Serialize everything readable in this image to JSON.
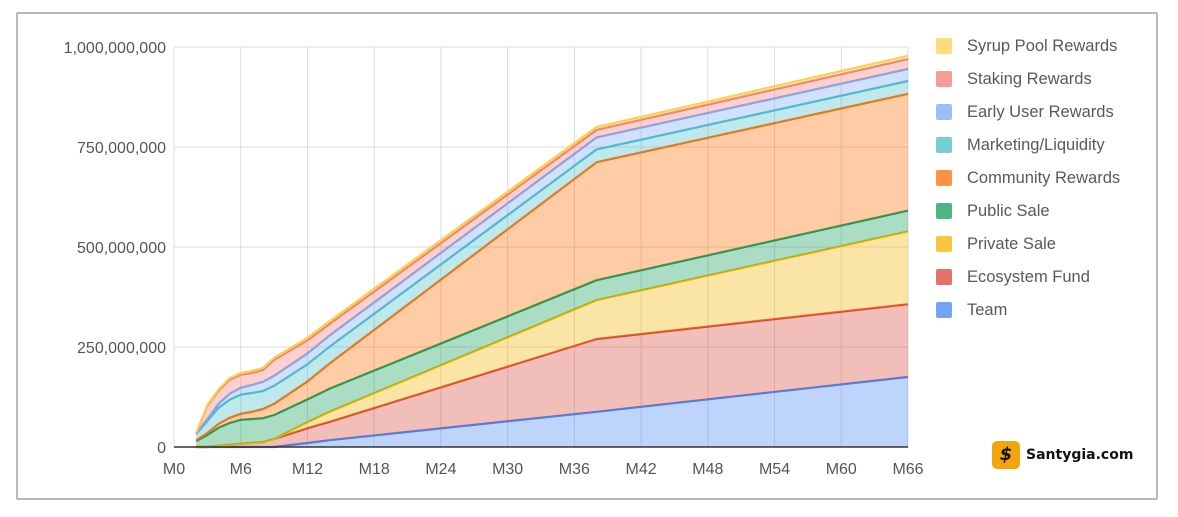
{
  "chart_data": {
    "type": "area",
    "stacked": true,
    "title": "",
    "xlabel": "",
    "ylabel": "",
    "x_ticks": [
      "M0",
      "M6",
      "M12",
      "M18",
      "M24",
      "M30",
      "M36",
      "M42",
      "M48",
      "M54",
      "M60",
      "M66"
    ],
    "y_ticks": [
      "0",
      "250,000,000",
      "500,000,000",
      "750,000,000",
      "1,000,000,000"
    ],
    "xlim": [
      0,
      66
    ],
    "ylim": [
      0,
      1000000000
    ],
    "grid": true,
    "legend_position": "right",
    "x": [
      2,
      3,
      4,
      5,
      6,
      7,
      8,
      9,
      12,
      14,
      38,
      66
    ],
    "series": [
      {
        "name": "Team",
        "color": "#4285f4",
        "values": [
          0,
          0,
          0,
          0,
          0,
          0,
          0,
          0,
          10000000,
          17000000,
          88000000,
          175000000
        ]
      },
      {
        "name": "Ecosystem Fund",
        "color": "#db4437",
        "values": [
          0,
          0,
          3000000,
          5000000,
          8000000,
          10000000,
          12000000,
          20000000,
          37000000,
          46000000,
          182000000,
          182000000
        ]
      },
      {
        "name": "Private Sale",
        "color": "#f4b400",
        "values": [
          0,
          0,
          0,
          0,
          0,
          0,
          0,
          0,
          15000000,
          25000000,
          97000000,
          182000000
        ]
      },
      {
        "name": "Public Sale",
        "color": "#0f9d58",
        "values": [
          15000000,
          30000000,
          45000000,
          55000000,
          60000000,
          60000000,
          60000000,
          60000000,
          57000000,
          58000000,
          50000000,
          52000000
        ]
      },
      {
        "name": "Community Rewards",
        "color": "#ff6d01",
        "values": [
          2000000,
          5000000,
          10000000,
          13000000,
          15000000,
          18000000,
          23000000,
          28000000,
          45000000,
          63000000,
          295000000,
          292000000
        ]
      },
      {
        "name": "Marketing/Liquidity",
        "color": "#46bdc6",
        "values": [
          15000000,
          30000000,
          40000000,
          45000000,
          48000000,
          47000000,
          45000000,
          45000000,
          43000000,
          42000000,
          32000000,
          32000000
        ]
      },
      {
        "name": "Early User Rewards",
        "color": "#7baaf7",
        "values": [
          0,
          5000000,
          10000000,
          15000000,
          17000000,
          20000000,
          23000000,
          25000000,
          27000000,
          28000000,
          30000000,
          30000000
        ]
      },
      {
        "name": "Staking Rewards",
        "color": "#f07b72",
        "values": [
          2000000,
          33000000,
          33000000,
          35000000,
          33000000,
          30000000,
          30000000,
          40000000,
          33000000,
          29000000,
          19000000,
          25000000
        ]
      },
      {
        "name": "Syrup Pool Rewards",
        "color": "#fcd04f",
        "values": [
          1000000,
          2000000,
          3000000,
          4000000,
          4000000,
          5000000,
          5000000,
          5000000,
          6000000,
          7000000,
          7000000,
          8000000
        ]
      }
    ]
  },
  "watermark": {
    "logo_text": "$",
    "text": "Santygia.com"
  }
}
